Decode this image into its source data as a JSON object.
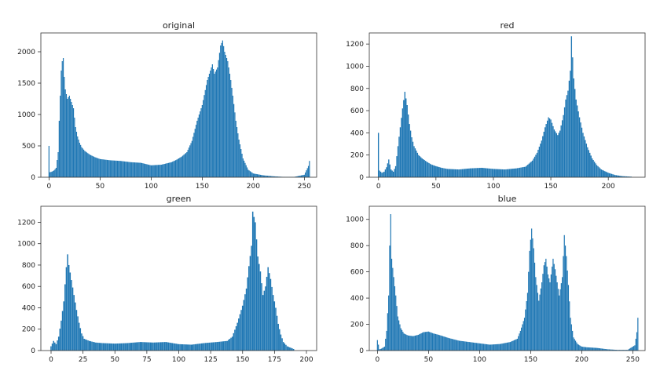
{
  "colors": {
    "bar": "#1f77b4",
    "axis": "#333333",
    "background": "#ffffff"
  },
  "chart_data": [
    {
      "type": "bar",
      "title": "original",
      "xlim": [
        -8,
        262
      ],
      "ylim": [
        0,
        2300
      ],
      "xticks": [
        0,
        50,
        100,
        150,
        200,
        250
      ],
      "yticks": [
        0,
        500,
        1000,
        1500,
        2000
      ],
      "grid": false,
      "points": [
        [
          0,
          500
        ],
        [
          1,
          80
        ],
        [
          3,
          90
        ],
        [
          5,
          110
        ],
        [
          7,
          150
        ],
        [
          9,
          400
        ],
        [
          10,
          900
        ],
        [
          11,
          1300
        ],
        [
          12,
          1700
        ],
        [
          13,
          1850
        ],
        [
          14,
          1900
        ],
        [
          15,
          1600
        ],
        [
          16,
          1400
        ],
        [
          18,
          1250
        ],
        [
          20,
          1300
        ],
        [
          22,
          1200
        ],
        [
          24,
          1100
        ],
        [
          26,
          800
        ],
        [
          28,
          650
        ],
        [
          30,
          550
        ],
        [
          32,
          480
        ],
        [
          35,
          420
        ],
        [
          40,
          360
        ],
        [
          45,
          320
        ],
        [
          50,
          290
        ],
        [
          60,
          270
        ],
        [
          70,
          260
        ],
        [
          80,
          240
        ],
        [
          90,
          230
        ],
        [
          100,
          190
        ],
        [
          110,
          200
        ],
        [
          120,
          240
        ],
        [
          125,
          280
        ],
        [
          130,
          330
        ],
        [
          135,
          400
        ],
        [
          140,
          580
        ],
        [
          145,
          900
        ],
        [
          150,
          1150
        ],
        [
          155,
          1550
        ],
        [
          158,
          1700
        ],
        [
          160,
          1800
        ],
        [
          162,
          1650
        ],
        [
          165,
          1750
        ],
        [
          168,
          2100
        ],
        [
          170,
          2180
        ],
        [
          172,
          2000
        ],
        [
          175,
          1850
        ],
        [
          178,
          1550
        ],
        [
          180,
          1300
        ],
        [
          183,
          900
        ],
        [
          186,
          600
        ],
        [
          190,
          300
        ],
        [
          195,
          120
        ],
        [
          200,
          60
        ],
        [
          210,
          30
        ],
        [
          220,
          15
        ],
        [
          230,
          5
        ],
        [
          240,
          5
        ],
        [
          250,
          40
        ],
        [
          254,
          180
        ],
        [
          255,
          260
        ]
      ]
    },
    {
      "type": "bar",
      "title": "red",
      "xlim": [
        -8,
        232
      ],
      "ylim": [
        0,
        1300
      ],
      "xticks": [
        0,
        50,
        100,
        150,
        200
      ],
      "yticks": [
        0,
        200,
        400,
        600,
        800,
        1000,
        1200
      ],
      "grid": false,
      "points": [
        [
          0,
          400
        ],
        [
          1,
          60
        ],
        [
          3,
          40
        ],
        [
          5,
          50
        ],
        [
          7,
          90
        ],
        [
          9,
          160
        ],
        [
          11,
          70
        ],
        [
          13,
          50
        ],
        [
          15,
          100
        ],
        [
          17,
          280
        ],
        [
          19,
          450
        ],
        [
          21,
          620
        ],
        [
          23,
          770
        ],
        [
          25,
          650
        ],
        [
          27,
          480
        ],
        [
          29,
          360
        ],
        [
          31,
          280
        ],
        [
          33,
          240
        ],
        [
          35,
          200
        ],
        [
          38,
          170
        ],
        [
          42,
          140
        ],
        [
          46,
          115
        ],
        [
          50,
          100
        ],
        [
          55,
          85
        ],
        [
          60,
          75
        ],
        [
          70,
          70
        ],
        [
          80,
          80
        ],
        [
          90,
          85
        ],
        [
          100,
          75
        ],
        [
          110,
          70
        ],
        [
          120,
          80
        ],
        [
          128,
          95
        ],
        [
          134,
          150
        ],
        [
          138,
          220
        ],
        [
          142,
          330
        ],
        [
          145,
          450
        ],
        [
          148,
          540
        ],
        [
          150,
          520
        ],
        [
          153,
          430
        ],
        [
          156,
          380
        ],
        [
          158,
          420
        ],
        [
          161,
          560
        ],
        [
          163,
          700
        ],
        [
          165,
          780
        ],
        [
          167,
          960
        ],
        [
          168,
          1270
        ],
        [
          170,
          890
        ],
        [
          172,
          700
        ],
        [
          175,
          540
        ],
        [
          178,
          400
        ],
        [
          182,
          270
        ],
        [
          186,
          170
        ],
        [
          190,
          110
        ],
        [
          194,
          70
        ],
        [
          200,
          40
        ],
        [
          206,
          20
        ],
        [
          212,
          10
        ],
        [
          220,
          5
        ]
      ]
    },
    {
      "type": "bar",
      "title": "green",
      "xlim": [
        -8,
        208
      ],
      "ylim": [
        0,
        1350
      ],
      "xticks": [
        0,
        25,
        50,
        75,
        100,
        125,
        150,
        175,
        200
      ],
      "yticks": [
        0,
        200,
        400,
        600,
        800,
        1000,
        1200
      ],
      "grid": false,
      "points": [
        [
          0,
          40
        ],
        [
          2,
          90
        ],
        [
          4,
          60
        ],
        [
          6,
          130
        ],
        [
          8,
          280
        ],
        [
          10,
          460
        ],
        [
          12,
          780
        ],
        [
          13,
          900
        ],
        [
          14,
          800
        ],
        [
          16,
          660
        ],
        [
          18,
          520
        ],
        [
          20,
          380
        ],
        [
          22,
          260
        ],
        [
          24,
          160
        ],
        [
          26,
          110
        ],
        [
          30,
          90
        ],
        [
          35,
          75
        ],
        [
          40,
          70
        ],
        [
          50,
          65
        ],
        [
          60,
          70
        ],
        [
          70,
          80
        ],
        [
          80,
          75
        ],
        [
          90,
          80
        ],
        [
          100,
          60
        ],
        [
          110,
          55
        ],
        [
          120,
          70
        ],
        [
          130,
          80
        ],
        [
          138,
          90
        ],
        [
          142,
          130
        ],
        [
          146,
          260
        ],
        [
          150,
          420
        ],
        [
          153,
          580
        ],
        [
          155,
          790
        ],
        [
          157,
          980
        ],
        [
          158,
          1300
        ],
        [
          160,
          1200
        ],
        [
          162,
          880
        ],
        [
          164,
          740
        ],
        [
          166,
          520
        ],
        [
          168,
          600
        ],
        [
          170,
          780
        ],
        [
          172,
          670
        ],
        [
          174,
          520
        ],
        [
          176,
          400
        ],
        [
          178,
          250
        ],
        [
          180,
          150
        ],
        [
          182,
          80
        ],
        [
          185,
          40
        ],
        [
          190,
          15
        ]
      ]
    },
    {
      "type": "bar",
      "title": "blue",
      "xlim": [
        -8,
        262
      ],
      "ylim": [
        0,
        1100
      ],
      "xticks": [
        0,
        50,
        100,
        150,
        200,
        250
      ],
      "yticks": [
        0,
        200,
        400,
        600,
        800,
        1000
      ],
      "grid": false,
      "points": [
        [
          0,
          80
        ],
        [
          2,
          10
        ],
        [
          4,
          15
        ],
        [
          7,
          30
        ],
        [
          9,
          150
        ],
        [
          11,
          420
        ],
        [
          12,
          800
        ],
        [
          13,
          1040
        ],
        [
          14,
          700
        ],
        [
          16,
          560
        ],
        [
          18,
          420
        ],
        [
          20,
          260
        ],
        [
          23,
          170
        ],
        [
          26,
          130
        ],
        [
          30,
          115
        ],
        [
          35,
          110
        ],
        [
          40,
          120
        ],
        [
          45,
          140
        ],
        [
          50,
          145
        ],
        [
          55,
          130
        ],
        [
          60,
          120
        ],
        [
          70,
          95
        ],
        [
          80,
          75
        ],
        [
          90,
          65
        ],
        [
          100,
          55
        ],
        [
          110,
          45
        ],
        [
          120,
          50
        ],
        [
          130,
          65
        ],
        [
          137,
          90
        ],
        [
          140,
          150
        ],
        [
          144,
          250
        ],
        [
          147,
          440
        ],
        [
          149,
          760
        ],
        [
          151,
          930
        ],
        [
          153,
          780
        ],
        [
          155,
          560
        ],
        [
          158,
          380
        ],
        [
          161,
          520
        ],
        [
          163,
          650
        ],
        [
          165,
          700
        ],
        [
          167,
          580
        ],
        [
          169,
          520
        ],
        [
          172,
          700
        ],
        [
          174,
          620
        ],
        [
          176,
          520
        ],
        [
          178,
          420
        ],
        [
          181,
          560
        ],
        [
          183,
          880
        ],
        [
          185,
          720
        ],
        [
          187,
          500
        ],
        [
          189,
          250
        ],
        [
          192,
          100
        ],
        [
          196,
          50
        ],
        [
          200,
          30
        ],
        [
          205,
          25
        ],
        [
          215,
          20
        ],
        [
          225,
          10
        ],
        [
          235,
          5
        ],
        [
          245,
          5
        ],
        [
          252,
          40
        ],
        [
          254,
          140
        ],
        [
          255,
          250
        ]
      ]
    }
  ]
}
